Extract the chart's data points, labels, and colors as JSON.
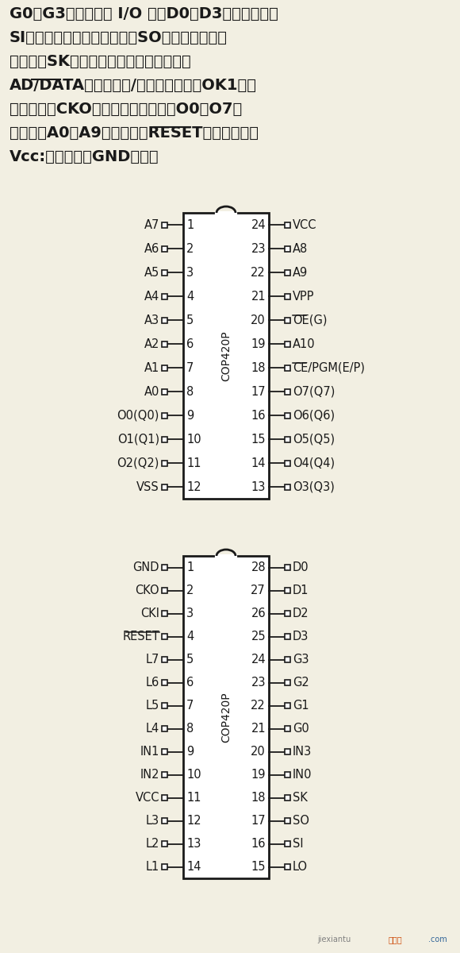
{
  "bg_color": "#f2efe2",
  "text_color": "#1a1a1a",
  "chip1": {
    "label": "COP420P",
    "left_pins": [
      {
        "num": 1,
        "name": "A7"
      },
      {
        "num": 2,
        "name": "A6"
      },
      {
        "num": 3,
        "name": "A5"
      },
      {
        "num": 4,
        "name": "A4"
      },
      {
        "num": 5,
        "name": "A3"
      },
      {
        "num": 6,
        "name": "A2"
      },
      {
        "num": 7,
        "name": "A1"
      },
      {
        "num": 8,
        "name": "A0"
      },
      {
        "num": 9,
        "name": "O0(Q0)"
      },
      {
        "num": 10,
        "name": "O1(Q1)"
      },
      {
        "num": 11,
        "name": "O2(Q2)"
      },
      {
        "num": 12,
        "name": "VSS"
      }
    ],
    "right_pins": [
      {
        "num": 24,
        "name": "VCC"
      },
      {
        "num": 23,
        "name": "A8"
      },
      {
        "num": 22,
        "name": "A9"
      },
      {
        "num": 21,
        "name": "VPP"
      },
      {
        "num": 20,
        "name": "OE(G)",
        "overline": "OE"
      },
      {
        "num": 19,
        "name": "A10"
      },
      {
        "num": 18,
        "name": "CE/PGM(E/P)",
        "overline": "CE"
      },
      {
        "num": 17,
        "name": "O7(Q7)"
      },
      {
        "num": 16,
        "name": "O6(Q6)"
      },
      {
        "num": 15,
        "name": "O5(Q5)"
      },
      {
        "num": 14,
        "name": "O4(Q4)"
      },
      {
        "num": 13,
        "name": "O3(Q3)"
      }
    ]
  },
  "chip2": {
    "label": "COP420P",
    "left_pins": [
      {
        "num": 1,
        "name": "GND"
      },
      {
        "num": 2,
        "name": "CKO"
      },
      {
        "num": 3,
        "name": "CKI"
      },
      {
        "num": 4,
        "name": "RESET",
        "overline": "RESET"
      },
      {
        "num": 5,
        "name": "L7"
      },
      {
        "num": 6,
        "name": "L6"
      },
      {
        "num": 7,
        "name": "L5"
      },
      {
        "num": 8,
        "name": "L4"
      },
      {
        "num": 9,
        "name": "IN1"
      },
      {
        "num": 10,
        "name": "IN2"
      },
      {
        "num": 11,
        "name": "VCC"
      },
      {
        "num": 12,
        "name": "L3"
      },
      {
        "num": 13,
        "name": "L2"
      },
      {
        "num": 14,
        "name": "L1"
      }
    ],
    "right_pins": [
      {
        "num": 28,
        "name": "D0"
      },
      {
        "num": 27,
        "name": "D1"
      },
      {
        "num": 26,
        "name": "D2"
      },
      {
        "num": 25,
        "name": "D3"
      },
      {
        "num": 24,
        "name": "G3"
      },
      {
        "num": 23,
        "name": "G2"
      },
      {
        "num": 22,
        "name": "G1"
      },
      {
        "num": 21,
        "name": "G0"
      },
      {
        "num": 20,
        "name": "IN3"
      },
      {
        "num": 19,
        "name": "IN0"
      },
      {
        "num": 18,
        "name": "SK"
      },
      {
        "num": 17,
        "name": "SO"
      },
      {
        "num": 16,
        "name": "SI"
      },
      {
        "num": 15,
        "name": "LO"
      }
    ]
  }
}
